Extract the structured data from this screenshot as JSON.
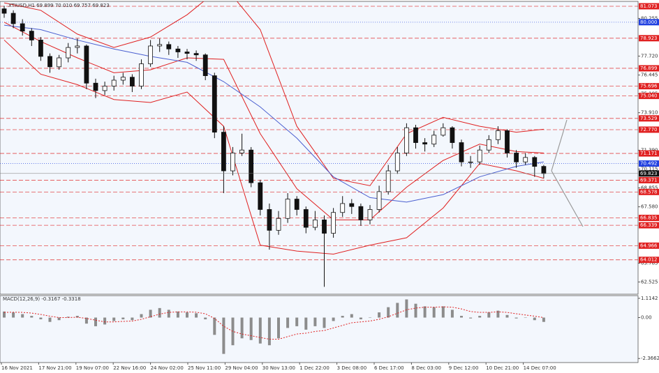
{
  "chart_data": {
    "type": "candlestick",
    "title": "XTIUSD,H1  69.899 70.010 69.757 69.823",
    "x_labels": [
      "16 Nov 2021",
      "17 Nov 21:00",
      "19 Nov 07:00",
      "22 Nov 16:00",
      "24 Nov 02:00",
      "25 Nov 11:00",
      "29 Nov 04:00",
      "30 Nov 13:00",
      "1 Dec 22:00",
      "3 Dec 08:00",
      "6 Dec 17:00",
      "8 Dec 03:00",
      "9 Dec 12:00",
      "10 Dec 21:00",
      "14 Dec 07:00"
    ],
    "open": [
      80.9,
      80.6,
      79.9,
      79.4,
      78.8,
      77.7,
      77.0,
      77.6,
      78.3,
      78.4,
      75.9,
      75.4,
      75.7,
      76.1,
      76.3,
      75.7,
      77.2,
      78.4,
      78.5,
      78.2,
      78.0,
      77.9,
      77.8,
      76.4,
      72.6,
      70.0,
      71.2,
      71.4,
      69.2,
      67.4,
      66.0,
      66.8,
      68.1,
      67.4,
      66.2,
      66.7,
      65.8,
      67.2,
      67.8,
      67.6,
      66.7,
      67.4,
      68.6,
      70.0,
      71.2,
      72.9,
      71.9,
      71.8,
      72.4,
      72.9,
      71.9,
      70.6,
      70.6,
      71.4,
      72.1,
      72.7,
      71.2,
      70.6,
      70.9,
      70.3
    ],
    "high": [
      81.1,
      80.8,
      80.2,
      79.6,
      79.0,
      77.9,
      77.8,
      78.6,
      78.9,
      78.5,
      76.2,
      76.0,
      76.4,
      76.6,
      76.5,
      77.5,
      78.8,
      78.9,
      78.7,
      78.4,
      78.2,
      78.1,
      77.9,
      76.6,
      73.0,
      71.6,
      72.5,
      71.6,
      69.4,
      67.8,
      67.3,
      68.5,
      68.3,
      67.6,
      67.3,
      67.0,
      67.5,
      68.3,
      68.1,
      67.8,
      67.7,
      69.0,
      70.4,
      71.6,
      73.2,
      73.1,
      72.2,
      72.7,
      73.2,
      73.0,
      72.1,
      71.0,
      71.7,
      72.4,
      73.0,
      72.8,
      71.4,
      71.2,
      71.0,
      70.4
    ],
    "low": [
      80.3,
      79.6,
      79.1,
      78.4,
      77.4,
      76.6,
      76.8,
      77.3,
      77.9,
      75.5,
      74.9,
      75.1,
      75.4,
      75.8,
      75.3,
      75.5,
      77.0,
      78.0,
      77.8,
      77.6,
      77.5,
      77.4,
      76.1,
      72.2,
      68.5,
      69.7,
      71.0,
      68.9,
      67.0,
      64.7,
      65.7,
      66.5,
      67.0,
      65.8,
      66.0,
      62.2,
      65.5,
      66.9,
      67.1,
      66.3,
      66.4,
      67.2,
      68.4,
      69.8,
      71.0,
      71.5,
      71.3,
      71.6,
      72.3,
      71.5,
      70.3,
      70.2,
      70.4,
      71.2,
      71.8,
      70.9,
      70.2,
      70.4,
      69.6,
      69.5
    ],
    "close": [
      80.6,
      79.9,
      79.4,
      78.8,
      77.7,
      77.0,
      77.6,
      78.3,
      78.4,
      75.9,
      75.4,
      75.7,
      76.1,
      76.3,
      75.7,
      77.2,
      78.4,
      78.5,
      78.2,
      78.0,
      77.9,
      77.8,
      76.4,
      72.6,
      70.0,
      71.2,
      71.4,
      69.2,
      67.4,
      66.0,
      66.8,
      68.1,
      67.4,
      66.2,
      66.7,
      65.8,
      67.2,
      67.8,
      67.6,
      66.7,
      67.4,
      68.6,
      70.0,
      71.2,
      72.9,
      71.9,
      71.8,
      72.4,
      72.9,
      71.9,
      70.6,
      70.6,
      71.4,
      72.1,
      72.7,
      71.2,
      70.6,
      70.9,
      70.3,
      69.823
    ],
    "overlays": [
      {
        "color": "#e02020",
        "x": [
          0,
          4,
          8,
          12,
          16,
          20,
          24,
          28,
          32,
          36,
          40,
          44,
          48,
          52,
          56,
          59
        ],
        "values": [
          81.3,
          80.8,
          79.2,
          78.3,
          79.0,
          80.5,
          82.5,
          79.5,
          73.0,
          69.5,
          69.0,
          72.5,
          73.6,
          73.0,
          72.6,
          72.8
        ]
      },
      {
        "color": "#e02020",
        "x": [
          0,
          4,
          8,
          12,
          16,
          20,
          24,
          28,
          32,
          36,
          40,
          44,
          48,
          52,
          56,
          59
        ],
        "values": [
          78.8,
          76.5,
          75.8,
          74.8,
          74.6,
          75.3,
          73.0,
          65.0,
          64.6,
          64.4,
          65.0,
          65.5,
          67.5,
          70.5,
          70.0,
          69.5
        ]
      },
      {
        "color": "#e02020",
        "x": [
          0,
          4,
          8,
          12,
          16,
          20,
          24,
          28,
          32,
          36,
          40,
          44,
          48,
          52,
          56,
          59
        ],
        "values": [
          80.0,
          78.7,
          77.6,
          76.6,
          76.8,
          77.6,
          77.5,
          72.5,
          68.8,
          66.7,
          66.7,
          68.9,
          70.7,
          71.8,
          71.3,
          71.2
        ]
      },
      {
        "color": "#4a5fd0",
        "x": [
          0,
          4,
          8,
          12,
          16,
          20,
          24,
          28,
          32,
          36,
          40,
          44,
          48,
          52,
          56,
          59
        ],
        "values": [
          79.8,
          79.5,
          78.8,
          78.2,
          77.7,
          77.3,
          76.0,
          74.3,
          72.2,
          69.6,
          68.2,
          67.9,
          68.4,
          69.6,
          70.3,
          70.6
        ]
      }
    ],
    "levels": {
      "color": "#e02020",
      "values": [
        81.073,
        78.923,
        76.899,
        75.696,
        75.04,
        73.529,
        72.77,
        71.171,
        69.371,
        68.578,
        66.835,
        66.339,
        64.966,
        64.012
      ],
      "value_labels": [
        "81.073",
        "78.923",
        "76.899",
        "75.696",
        "75.040",
        "73.529",
        "72.770",
        "71.171",
        "69.371",
        "68.578",
        "66.835",
        "66.339",
        "64.966",
        "64.012"
      ]
    },
    "blue_levels": {
      "color": "#2040e0",
      "values": [
        80,
        70.492
      ],
      "value_labels": [
        "80.000",
        "70.492"
      ]
    },
    "last_price": 69.823,
    "ylim": [
      61.7,
      81.4
    ],
    "yticks": [
      80.255,
      {
        "value": 77.72,
        "label": "77.720"
      },
      76.445,
      75.185,
      {
        "value": 73.91,
        "label": "73.910"
      },
      {
        "value": 71.39,
        "label": "71.390"
      },
      70.115,
      68.855,
      {
        "value": 67.58,
        "label": "67.580"
      },
      63.785,
      62.525
    ],
    "macd": {
      "label": "MACD(12,26,9) -0.3167 -0.3318",
      "color": "#8c8c8c",
      "signal_color": "#e02020",
      "histogram": [
        0.35,
        0.3,
        0.2,
        0.1,
        -0.1,
        -0.25,
        -0.15,
        0.05,
        0.1,
        -0.35,
        -0.5,
        -0.4,
        -0.2,
        -0.1,
        -0.15,
        0.2,
        0.45,
        0.55,
        0.45,
        0.35,
        0.3,
        0.25,
        -0.1,
        -1.0,
        -2.1,
        -1.6,
        -1.2,
        -1.3,
        -1.5,
        -1.6,
        -1.2,
        -0.6,
        -0.5,
        -0.7,
        -0.5,
        -0.6,
        -0.2,
        0.1,
        0.2,
        -0.1,
        0.0,
        0.3,
        0.6,
        0.85,
        1.05,
        0.8,
        0.65,
        0.6,
        0.65,
        0.45,
        0.1,
        -0.05,
        0.1,
        0.3,
        0.4,
        0.15,
        -0.05,
        0.0,
        -0.15,
        -0.25
      ],
      "signal": [
        0.3,
        0.31,
        0.3,
        0.26,
        0.18,
        0.08,
        0.0,
        0.0,
        0.02,
        -0.05,
        -0.15,
        -0.25,
        -0.25,
        -0.22,
        -0.2,
        -0.1,
        0.05,
        0.2,
        0.3,
        0.33,
        0.33,
        0.31,
        0.22,
        -0.05,
        -0.5,
        -0.8,
        -0.95,
        -1.05,
        -1.15,
        -1.25,
        -1.25,
        -1.1,
        -0.95,
        -0.9,
        -0.8,
        -0.75,
        -0.6,
        -0.45,
        -0.3,
        -0.25,
        -0.2,
        -0.1,
        0.05,
        0.25,
        0.45,
        0.55,
        0.6,
        0.6,
        0.62,
        0.6,
        0.5,
        0.35,
        0.3,
        0.3,
        0.33,
        0.3,
        0.22,
        0.15,
        0.08,
        0.0
      ],
      "ylim": [
        -2.6,
        1.27
      ],
      "yticks": [
        1.1142,
        {
          "value": 0,
          "label": "0.00"
        },
        -2.3662
      ]
    }
  }
}
